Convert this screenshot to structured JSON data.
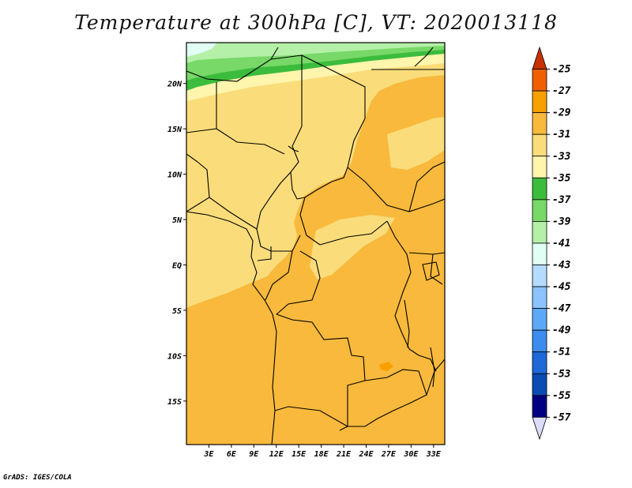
{
  "title": "Temperature at 300hPa [C], VT: 2020013118",
  "footer": "GrADS: IGES/COLA",
  "map": {
    "lon_ticks": [
      "3E",
      "6E",
      "9E",
      "12E",
      "15E",
      "18E",
      "21E",
      "24E",
      "27E",
      "30E",
      "33E"
    ],
    "lat_ticks": [
      "20N",
      "15N",
      "10N",
      "5N",
      "EQ",
      "5S",
      "10S",
      "15S"
    ],
    "lon_range": [
      0,
      34.5
    ],
    "lat_range": [
      -19.8,
      24.5
    ]
  },
  "colorbar": {
    "labels": [
      "-25",
      "-27",
      "-29",
      "-31",
      "-33",
      "-35",
      "-37",
      "-39",
      "-41",
      "-43",
      "-45",
      "-47",
      "-49",
      "-51",
      "-53",
      "-55",
      "-57"
    ],
    "colors": [
      "#c73200",
      "#f06000",
      "#f8a000",
      "#f8b93c",
      "#fadd7a",
      "#fff5ad",
      "#3cbc3c",
      "#78d868",
      "#b4f0a8",
      "#e1fff4",
      "#b4dcff",
      "#8cc3ff",
      "#5ea8f8",
      "#3c8cf0",
      "#1e68d8",
      "#0a4cb4",
      "#000080",
      "#dcdcff"
    ]
  },
  "chart_data": {
    "type": "heatmap",
    "title": "Temperature at 300hPa [C], VT: 2020013118",
    "units": "C",
    "x_ticks": [
      "3E",
      "6E",
      "9E",
      "12E",
      "15E",
      "18E",
      "21E",
      "24E",
      "27E",
      "30E",
      "33E"
    ],
    "y_ticks": [
      "20N",
      "15N",
      "10N",
      "5N",
      "EQ",
      "5S",
      "10S",
      "15S"
    ],
    "levels": [
      -25,
      -27,
      -29,
      -31,
      -33,
      -35,
      -37,
      -39,
      -41,
      -43,
      -45,
      -47,
      -49,
      -51,
      -53,
      -55,
      -57
    ],
    "regions": [
      {
        "band": "-35 to -41",
        "area": "northern edge ~21N-24.5N"
      },
      {
        "band": "-33 to -35",
        "area": "~18N-21N"
      },
      {
        "band": "-31 to -33",
        "area": "Sahel / western Africa ~2N-18N"
      },
      {
        "band": "-29 to -31",
        "area": "central & southern Africa, eastern Sahel"
      },
      {
        "band": "-27 to -29",
        "area": "small patch near 26E, 12S"
      }
    ]
  }
}
